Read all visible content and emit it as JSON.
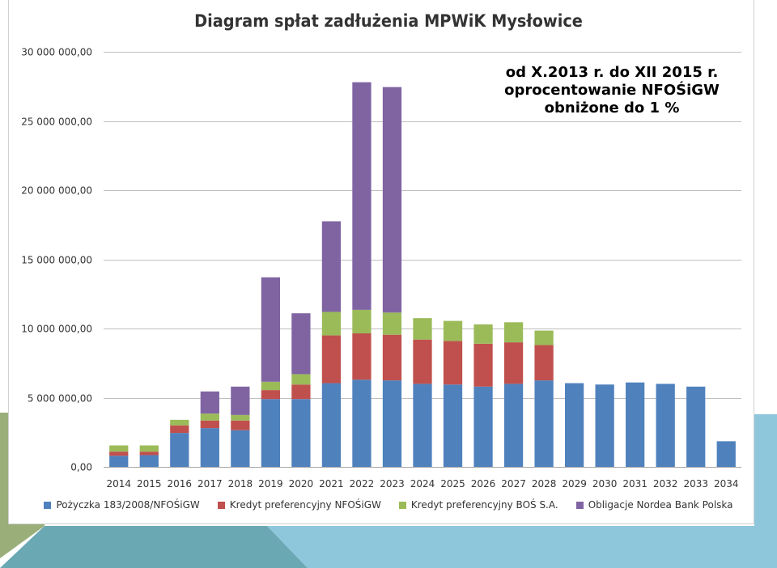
{
  "chart_data": {
    "type": "bar",
    "stacked": true,
    "title": "Diagram spłat zadłużenia MPWiK Mysłowice",
    "xlabel": "",
    "ylabel": "",
    "ylim": [
      0,
      30000000
    ],
    "y_ticks": [
      0,
      5000000,
      10000000,
      15000000,
      20000000,
      25000000,
      30000000
    ],
    "y_tick_labels": [
      "0,00",
      "5 000 000,00",
      "10 000 000,00",
      "15 000 000,00",
      "20 000 000,00",
      "25 000 000,00",
      "30 000 000,00"
    ],
    "grid": true,
    "legend_position": "bottom",
    "categories": [
      "2014",
      "2015",
      "2016",
      "2017",
      "2018",
      "2019",
      "2020",
      "2021",
      "2022",
      "2023",
      "2024",
      "2025",
      "2026",
      "2027",
      "2028",
      "2029",
      "2030",
      "2031",
      "2032",
      "2033",
      "2034"
    ],
    "series": [
      {
        "name": "Pożyczka 183/2008/NFOŚiGW",
        "color": "#4f81bd",
        "values": [
          800000,
          850000,
          2450000,
          2800000,
          2650000,
          4900000,
          4900000,
          6050000,
          6300000,
          6250000,
          6000000,
          5950000,
          5800000,
          6000000,
          6250000,
          6050000,
          5950000,
          6100000,
          6000000,
          5800000,
          1850000
        ]
      },
      {
        "name": "Kredyt preferencyjny NFOŚiGW",
        "color": "#c0504d",
        "values": [
          300000,
          250000,
          550000,
          550000,
          700000,
          650000,
          1050000,
          3450000,
          3350000,
          3300000,
          3200000,
          3150000,
          3100000,
          3000000,
          2550000,
          0,
          0,
          0,
          0,
          0,
          0
        ]
      },
      {
        "name": "Kredyt preferencyjny BOŚ S.A.",
        "color": "#9bbb59",
        "values": [
          450000,
          450000,
          400000,
          500000,
          400000,
          600000,
          750000,
          1700000,
          1700000,
          1600000,
          1550000,
          1450000,
          1400000,
          1450000,
          1050000,
          0,
          0,
          0,
          0,
          0,
          0
        ]
      },
      {
        "name": "Obligacje Nordea Bank Polska",
        "color": "#8064a2",
        "values": [
          0,
          0,
          0,
          1600000,
          2050000,
          7550000,
          4400000,
          6550000,
          16450000,
          16300000,
          0,
          0,
          0,
          0,
          0,
          0,
          0,
          0,
          0,
          0,
          0
        ]
      }
    ]
  },
  "annotation": {
    "line1": "od X.2013 r. do XII 2015 r.",
    "line2": "oprocentowanie NFOŚiGW",
    "line3": "obniżone do 1 %"
  }
}
